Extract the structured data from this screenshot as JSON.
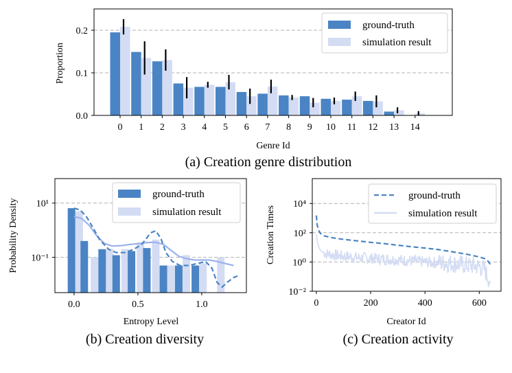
{
  "colors": {
    "gt": "#4a84c4",
    "sim": "#d3dcf3",
    "sim_line": "#9bb1ec",
    "err": "#000000",
    "grid": "#b0b0b0"
  },
  "chart_data": [
    {
      "id": "a",
      "type": "bar",
      "caption": "(a) Creation genre distribution",
      "xlabel": "Genre Id",
      "ylabel": "Proportion",
      "ylim": [
        0,
        0.25
      ],
      "yticks": [
        0.0,
        0.1,
        0.2
      ],
      "ytick_labels": [
        "0.0",
        "0.1",
        "0.2"
      ],
      "categories": [
        "0",
        "1",
        "2",
        "3",
        "4",
        "5",
        "6",
        "7",
        "8",
        "9",
        "10",
        "11",
        "12",
        "13",
        "14"
      ],
      "legend": {
        "placement": "upper-right",
        "entries": [
          "ground-truth",
          "simulation result"
        ]
      },
      "series": [
        {
          "name": "ground-truth",
          "values": [
            0.195,
            0.149,
            0.127,
            0.075,
            0.067,
            0.067,
            0.055,
            0.051,
            0.047,
            0.045,
            0.039,
            0.037,
            0.034,
            0.009,
            0.0
          ]
        },
        {
          "name": "simulation result",
          "values": [
            0.208,
            0.135,
            0.13,
            0.065,
            0.072,
            0.078,
            0.045,
            0.068,
            0.042,
            0.03,
            0.034,
            0.045,
            0.033,
            0.012,
            0.005
          ],
          "error": [
            0.018,
            0.039,
            0.025,
            0.025,
            0.007,
            0.017,
            0.018,
            0.016,
            0.006,
            0.011,
            0.008,
            0.011,
            0.014,
            0.007,
            0.005
          ]
        }
      ]
    },
    {
      "id": "b",
      "type": "bar+line",
      "caption": "(b) Creation diversity",
      "xlabel": "Entropy Level",
      "ylabel": "Probability Density",
      "yscale": "log",
      "ylim": [
        0.005,
        80
      ],
      "xlim": [
        -0.15,
        1.35
      ],
      "xticks": [
        0.0,
        0.5,
        1.0
      ],
      "xtick_labels": [
        "0.0",
        "0.5",
        "1.0"
      ],
      "yticks": [
        10,
        0.1
      ],
      "ytick_labels": [
        "10¹",
        "10⁻¹"
      ],
      "legend": {
        "placement": "upper-right",
        "entries": [
          "ground-truth",
          "simulation result"
        ]
      },
      "bars": {
        "gt_x": [
          -0.02,
          0.08,
          0.22,
          0.33,
          0.45,
          0.57,
          0.7,
          0.82,
          0.95
        ],
        "gt_values": [
          6.5,
          0.4,
          0.2,
          0.12,
          0.17,
          0.22,
          0.05,
          0.05,
          0.05
        ],
        "sim_x": [
          0.04,
          0.16,
          0.28,
          0.4,
          0.52,
          0.64,
          0.76,
          0.88,
          1.01,
          1.15
        ],
        "sim_values": [
          5.0,
          0.1,
          0.2,
          0.2,
          0.35,
          0.45,
          0.05,
          0.12,
          0.06,
          0.1
        ]
      },
      "lines": {
        "gt_kde": {
          "x": [
            0.0,
            0.05,
            0.1,
            0.15,
            0.2,
            0.27,
            0.33,
            0.4,
            0.47,
            0.53,
            0.6,
            0.64,
            0.68,
            0.72,
            0.77,
            0.83,
            0.9,
            0.97,
            1.03,
            1.08,
            1.12,
            1.16,
            1.2,
            1.25,
            1.3
          ],
          "y": [
            6.5,
            5.5,
            3.0,
            1.2,
            0.45,
            0.2,
            0.15,
            0.15,
            0.2,
            0.3,
            0.8,
            0.95,
            0.5,
            0.15,
            0.07,
            0.05,
            0.05,
            0.06,
            0.07,
            0.04,
            0.012,
            0.008,
            0.012,
            0.018,
            0.022
          ]
        },
        "sim_kde": {
          "x": [
            0.0,
            0.06,
            0.12,
            0.18,
            0.24,
            0.3,
            0.37,
            0.44,
            0.5,
            0.57,
            0.64,
            0.7,
            0.76,
            0.82,
            0.88,
            0.94,
            1.0,
            1.06,
            1.12,
            1.18,
            1.25
          ],
          "y": [
            3.2,
            2.7,
            1.5,
            0.6,
            0.32,
            0.26,
            0.27,
            0.3,
            0.32,
            0.35,
            0.36,
            0.3,
            0.18,
            0.11,
            0.09,
            0.08,
            0.08,
            0.08,
            0.07,
            0.06,
            0.05
          ]
        }
      }
    },
    {
      "id": "c",
      "type": "line",
      "caption": "(c) Creation activity",
      "xlabel": "Creator Id",
      "ylabel": "Creation Times",
      "yscale": "log",
      "ylim": [
        0.01,
        500000
      ],
      "xlim": [
        -15,
        680
      ],
      "xticks": [
        0,
        200,
        400,
        600
      ],
      "xtick_labels": [
        "0",
        "200",
        "400",
        "600"
      ],
      "yticks": [
        10000,
        100,
        1,
        0.01
      ],
      "ytick_labels": [
        "10⁴",
        "10²",
        "10⁰",
        "10⁻²"
      ],
      "legend": {
        "placement": "upper-right",
        "entries": [
          "ground-truth",
          "simulation result"
        ]
      },
      "series": [
        {
          "name": "ground-truth",
          "style": "dashed",
          "x": [
            0,
            3,
            8,
            15,
            30,
            60,
            100,
            150,
            200,
            250,
            300,
            350,
            400,
            450,
            500,
            550,
            600,
            620,
            630,
            640
          ],
          "y": [
            1500,
            350,
            150,
            90,
            60,
            45,
            35,
            28,
            22,
            18,
            14,
            11,
            9,
            7,
            5,
            3.5,
            2.2,
            1.7,
            1.3,
            0.7
          ]
        },
        {
          "name": "simulation result",
          "style": "solid",
          "x": [
            0,
            3,
            8,
            15,
            30,
            60,
            100,
            150,
            200,
            250,
            300,
            350,
            400,
            450,
            500,
            550,
            600,
            620,
            630,
            640
          ],
          "y": [
            80,
            30,
            12,
            6,
            4,
            3,
            2.5,
            2,
            1.8,
            1.6,
            1.4,
            1.2,
            1.0,
            0.9,
            0.8,
            0.6,
            0.5,
            0.3,
            0.1,
            0.05
          ]
        }
      ]
    }
  ]
}
